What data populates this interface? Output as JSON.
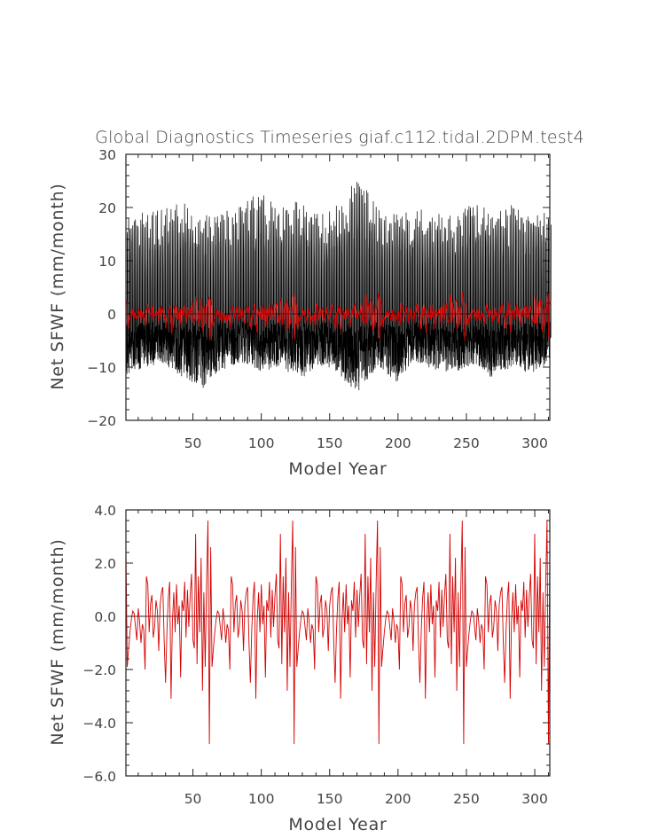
{
  "chart_data": [
    {
      "type": "line",
      "title": "Global Diagnostics Timeseries giaf.c112.tidal.2DPM.test4",
      "xlabel": "Model Year",
      "ylabel": "Net SFWF (mm/month)",
      "xlim": [
        1,
        311
      ],
      "ylim": [
        -20,
        30
      ],
      "xticks": [
        "50",
        "100",
        "150",
        "200",
        "250",
        "300"
      ],
      "yticks": [
        "−20",
        "−10",
        "0",
        "10",
        "20",
        "30"
      ],
      "zero_line": true,
      "series": [
        {
          "color": "#000000",
          "kind": "monthly",
          "cycle_years": 62,
          "envelope_max": [
            19.5,
            19.0,
            20.0,
            21.0,
            18.5,
            19.5,
            21.0,
            23.0,
            20.0,
            22.0,
            19.0,
            20.5,
            25.5,
            21.0,
            19.0,
            20.0,
            19.0,
            18.5,
            21.0,
            19.5,
            20.5,
            18.0,
            20.0
          ],
          "envelope_min": [
            -11.5,
            -10.0,
            -9.5,
            -12.0,
            -14.0,
            -10.5,
            -9.0,
            -11.0,
            -10.0,
            -12.5,
            -9.5,
            -11.0,
            -15.5,
            -10.0,
            -13.0,
            -9.0,
            -10.5,
            -11.0,
            -9.5,
            -12.0,
            -10.0,
            -11.5,
            -9.0
          ]
        },
        {
          "color": "#d40000",
          "kind": "annual",
          "values_ref": "annual_mean"
        }
      ]
    },
    {
      "type": "line",
      "title": "",
      "xlabel": "Model Year",
      "ylabel": "Net SFWF (mm/month)",
      "xlim": [
        1,
        311
      ],
      "ylim": [
        -6.0,
        4.0
      ],
      "xticks": [
        "50",
        "100",
        "150",
        "200",
        "250",
        "300"
      ],
      "yticks": [
        "−6.0",
        "−4.0",
        "−2.0",
        "0.0",
        "2.0",
        "4.0"
      ],
      "zero_line": true,
      "series": [
        {
          "color": "#d40000",
          "kind": "annual",
          "cycle_years": 62,
          "x_start": 1,
          "values_cycle": [
            2.6,
            -1.9,
            -1.2,
            -0.6,
            -0.1,
            0.2,
            0.1,
            -0.4,
            -0.9,
            0.3,
            -0.2,
            -1.0,
            -0.3,
            -0.5,
            -2.0,
            1.5,
            1.2,
            -0.6,
            0.5,
            0.8,
            -0.8,
            -0.4,
            0.6,
            0.2,
            -1.3,
            0.4,
            0.9,
            1.1,
            -1.0,
            -2.5,
            -0.5,
            0.7,
            1.3,
            -3.1,
            -0.2,
            0.9,
            -0.6,
            1.2,
            -0.3,
            0.4,
            -2.3,
            0.6,
            0.2,
            1.3,
            -0.8,
            1.0,
            -0.4,
            0.8,
            1.6,
            -0.9,
            -1.2,
            3.1,
            -1.8,
            1.5,
            -0.6,
            2.2,
            -2.8,
            0.9,
            -1.9,
            1.3,
            3.6,
            -4.8
          ]
        }
      ]
    }
  ]
}
